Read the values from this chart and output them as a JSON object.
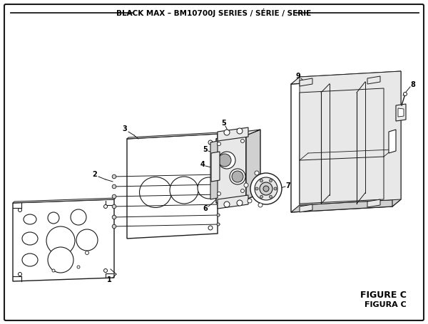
{
  "title": "BLACK MAX – BM10700J SERIES / SÉRIE / SERIE",
  "figure_label_1": "FIGURE C",
  "figure_label_2": "FIGURA C",
  "bg_color": "#ffffff",
  "border_color": "#1a1a1a",
  "lc": "#1a1a1a",
  "gray_light": "#e8e8e8",
  "gray_mid": "#d0d0d0",
  "gray_dark": "#b0b0b0"
}
